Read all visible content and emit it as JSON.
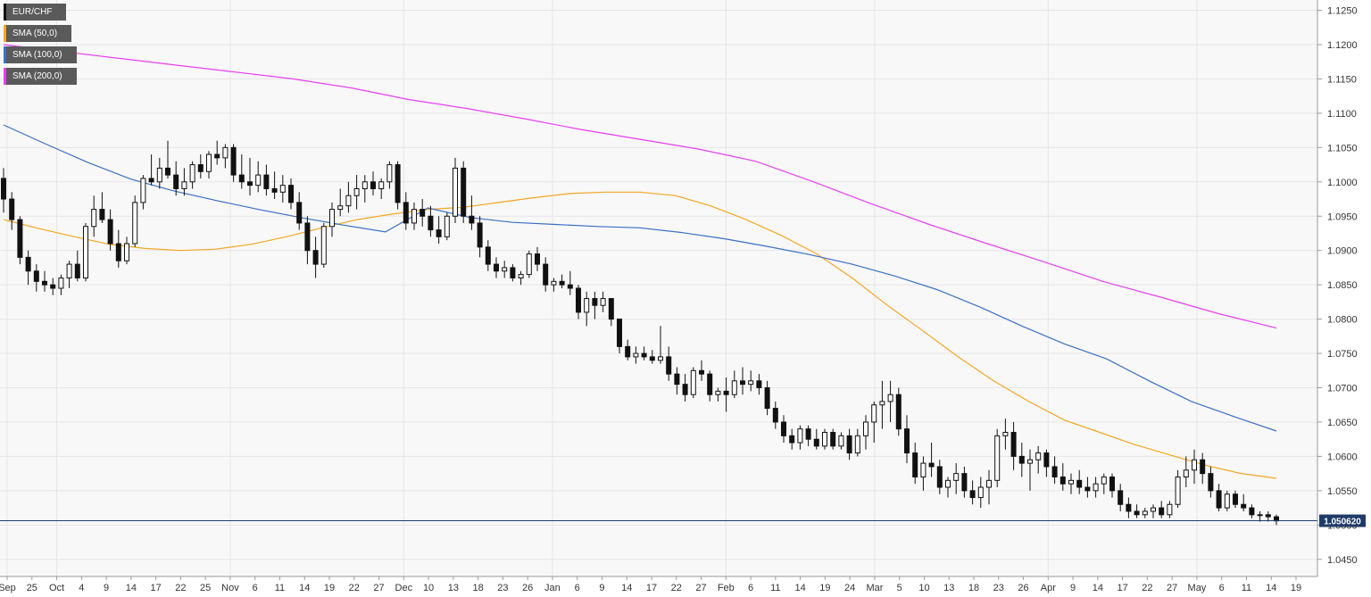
{
  "chart_data": {
    "type": "candlestick",
    "symbol": "EUR/CHF",
    "ylim": [
      1.0425,
      1.1265
    ],
    "y_ticks": [
      "1.1250",
      "1.1200",
      "1.1150",
      "1.1100",
      "1.1050",
      "1.1000",
      "1.0950",
      "1.0900",
      "1.0850",
      "1.0800",
      "1.0750",
      "1.0700",
      "1.0650",
      "1.0600",
      "1.0550",
      "1.0500",
      "1.0450"
    ],
    "x_tick_labels": [
      "Sep",
      "25",
      "Oct",
      "4",
      "9",
      "14",
      "17",
      "22",
      "25",
      "Nov",
      "6",
      "11",
      "14",
      "19",
      "22",
      "27",
      "Dec",
      "10",
      "13",
      "18",
      "23",
      "26",
      "Jan",
      "6",
      "9",
      "14",
      "17",
      "22",
      "27",
      "Feb",
      "6",
      "11",
      "14",
      "19",
      "24",
      "Mar",
      "5",
      "10",
      "13",
      "18",
      "23",
      "26",
      "Apr",
      "9",
      "14",
      "17",
      "22",
      "27",
      "May",
      "6",
      "11",
      "14",
      "19"
    ],
    "current_price": "1.050620",
    "legend": [
      {
        "label": "EUR/CHF",
        "color": "#111111"
      },
      {
        "label": "SMA (50,0)",
        "color": "#f5a623"
      },
      {
        "label": "SMA (100,0)",
        "color": "#3a6fc4"
      },
      {
        "label": "SMA (200,0)",
        "color": "#e83ef0"
      }
    ],
    "series": [
      {
        "name": "SMA (50,0)",
        "color": "#f5a623",
        "values": [
          1.0945,
          1.0932,
          1.092,
          1.0909,
          1.0903,
          1.09,
          1.0902,
          1.0909,
          1.092,
          1.0933,
          1.0945,
          1.0953,
          1.096,
          1.0963,
          1.097,
          1.0977,
          1.0983,
          1.0985,
          1.0985,
          1.098,
          1.0965,
          1.0945,
          1.0922,
          1.0895,
          1.086,
          1.082,
          1.0783,
          1.0745,
          1.071,
          1.068,
          1.0653,
          1.0635,
          1.0617,
          1.0602,
          1.0587,
          1.0575,
          1.0568
        ]
      },
      {
        "name": "SMA (100,0)",
        "color": "#3a6fc4",
        "values": [
          1.1083,
          1.1055,
          1.1028,
          1.1004,
          1.0987,
          1.0973,
          1.096,
          1.0948,
          1.0937,
          1.0927,
          1.0962,
          1.0948,
          1.0941,
          1.0938,
          1.0935,
          1.0933,
          1.0926,
          1.0917,
          1.0906,
          1.0894,
          1.088,
          1.0863,
          1.0843,
          1.0818,
          1.079,
          1.0764,
          1.0742,
          1.071,
          1.068,
          1.0658,
          1.0637
        ]
      },
      {
        "name": "SMA (200,0)",
        "color": "#e83ef0",
        "values": [
          1.12,
          1.119,
          1.118,
          1.117,
          1.116,
          1.115,
          1.1137,
          1.112,
          1.1107,
          1.1092,
          1.1076,
          1.1062,
          1.1048,
          1.103,
          1.1,
          1.0968,
          1.0938,
          1.091,
          1.0883,
          1.0855,
          1.0832,
          1.0808,
          1.0787
        ]
      }
    ],
    "candles": [
      [
        1.1005,
        1.102,
        1.0955,
        1.0975
      ],
      [
        1.0975,
        1.0985,
        1.093,
        1.0945
      ],
      [
        1.0945,
        1.095,
        1.088,
        1.089
      ],
      [
        1.089,
        1.09,
        1.085,
        1.087
      ],
      [
        1.087,
        1.088,
        1.084,
        1.0855
      ],
      [
        1.0855,
        1.087,
        1.084,
        1.085
      ],
      [
        1.085,
        1.086,
        1.0835,
        1.0845
      ],
      [
        1.0845,
        1.0865,
        1.0835,
        1.086
      ],
      [
        1.086,
        1.0885,
        1.0845,
        1.088
      ],
      [
        1.088,
        1.09,
        1.0855,
        1.086
      ],
      [
        1.086,
        1.094,
        1.0855,
        1.0935
      ],
      [
        1.0935,
        1.098,
        1.092,
        1.096
      ],
      [
        1.096,
        1.0985,
        1.094,
        1.0945
      ],
      [
        1.0945,
        1.096,
        1.09,
        1.091
      ],
      [
        1.091,
        1.093,
        1.0875,
        1.0885
      ],
      [
        1.0885,
        1.092,
        1.088,
        1.091
      ],
      [
        1.091,
        1.098,
        1.0905,
        1.097
      ],
      [
        1.097,
        1.101,
        1.096,
        1.1005
      ],
      [
        1.1005,
        1.104,
        1.0995,
        1.1
      ],
      [
        1.1,
        1.1035,
        1.099,
        1.102
      ],
      [
        1.102,
        1.106,
        1.1005,
        1.101
      ],
      [
        1.101,
        1.103,
        1.098,
        1.099
      ],
      [
        1.099,
        1.102,
        1.098,
        1.1
      ],
      [
        1.1,
        1.103,
        1.099,
        1.1025
      ],
      [
        1.1025,
        1.104,
        1.1005,
        1.1015
      ],
      [
        1.1015,
        1.1045,
        1.1005,
        1.104
      ],
      [
        1.104,
        1.106,
        1.1025,
        1.1035
      ],
      [
        1.1035,
        1.1055,
        1.102,
        1.105
      ],
      [
        1.105,
        1.1055,
        1.1,
        1.101
      ],
      [
        1.101,
        1.104,
        1.099,
        1.1
      ],
      [
        1.1,
        1.1035,
        1.098,
        1.0995
      ],
      [
        1.0995,
        1.103,
        1.0985,
        1.101
      ],
      [
        1.101,
        1.1025,
        1.098,
        1.099
      ],
      [
        1.099,
        1.1015,
        1.0975,
        1.0985
      ],
      [
        1.0985,
        1.101,
        1.097,
        1.0995
      ],
      [
        1.0995,
        1.1005,
        1.096,
        1.097
      ],
      [
        1.097,
        1.0985,
        1.093,
        1.094
      ],
      [
        1.094,
        1.095,
        1.088,
        1.09
      ],
      [
        1.09,
        1.092,
        1.086,
        1.088
      ],
      [
        1.088,
        1.094,
        1.0875,
        1.0935
      ],
      [
        1.0935,
        1.097,
        1.092,
        1.096
      ],
      [
        1.096,
        1.099,
        1.095,
        1.0965
      ],
      [
        1.0965,
        1.1,
        1.0955,
        1.098
      ],
      [
        1.098,
        1.101,
        1.096,
        1.099
      ],
      [
        1.099,
        1.101,
        1.097,
        1.1
      ],
      [
        1.1,
        1.1015,
        1.098,
        1.099
      ],
      [
        1.099,
        1.1005,
        1.0975,
        1.1
      ],
      [
        1.1,
        1.103,
        1.099,
        1.1025
      ],
      [
        1.1025,
        1.103,
        1.096,
        1.097
      ],
      [
        1.097,
        1.0985,
        1.093,
        1.094
      ],
      [
        1.094,
        1.097,
        1.093,
        1.096
      ],
      [
        1.096,
        1.0975,
        1.0935,
        1.095
      ],
      [
        1.095,
        1.0965,
        1.092,
        1.093
      ],
      [
        1.093,
        1.095,
        1.091,
        1.092
      ],
      [
        1.092,
        1.0955,
        1.0915,
        1.095
      ],
      [
        1.095,
        1.1035,
        1.094,
        1.102
      ],
      [
        1.102,
        1.103,
        1.094,
        1.095
      ],
      [
        1.095,
        1.098,
        1.093,
        1.094
      ],
      [
        1.094,
        1.095,
        1.089,
        1.0905
      ],
      [
        1.0905,
        1.0915,
        1.087,
        1.088
      ],
      [
        1.088,
        1.089,
        1.086,
        1.087
      ],
      [
        1.087,
        1.0885,
        1.086,
        1.0875
      ],
      [
        1.0875,
        1.088,
        1.0855,
        1.086
      ],
      [
        1.086,
        1.087,
        1.085,
        1.0865
      ],
      [
        1.0865,
        1.09,
        1.086,
        1.0895
      ],
      [
        1.0895,
        1.0905,
        1.087,
        1.088
      ],
      [
        1.088,
        1.089,
        1.084,
        1.085
      ],
      [
        1.085,
        1.086,
        1.084,
        1.0855
      ],
      [
        1.0855,
        1.0865,
        1.0845,
        1.085
      ],
      [
        1.085,
        1.087,
        1.0835,
        1.0845
      ],
      [
        1.0845,
        1.085,
        1.08,
        1.081
      ],
      [
        1.081,
        1.084,
        1.079,
        1.083
      ],
      [
        1.083,
        1.084,
        1.08,
        1.082
      ],
      [
        1.082,
        1.084,
        1.081,
        1.083
      ],
      [
        1.083,
        1.083,
        1.079,
        1.08
      ],
      [
        1.08,
        1.08,
        1.075,
        1.076
      ],
      [
        1.076,
        1.077,
        1.074,
        1.0745
      ],
      [
        1.0745,
        1.076,
        1.0735,
        1.075
      ],
      [
        1.075,
        1.076,
        1.074,
        1.0745
      ],
      [
        1.0745,
        1.0755,
        1.0735,
        1.074
      ],
      [
        1.074,
        1.079,
        1.0735,
        1.0745
      ],
      [
        1.0745,
        1.076,
        1.071,
        1.072
      ],
      [
        1.072,
        1.073,
        1.069,
        1.0705
      ],
      [
        1.0705,
        1.072,
        1.068,
        1.069
      ],
      [
        1.069,
        1.073,
        1.0685,
        1.0725
      ],
      [
        1.0725,
        1.074,
        1.071,
        1.072
      ],
      [
        1.072,
        1.0725,
        1.068,
        1.069
      ],
      [
        1.069,
        1.07,
        1.068,
        1.0695
      ],
      [
        1.0695,
        1.0715,
        1.0665,
        1.069
      ],
      [
        1.069,
        1.0725,
        1.0685,
        1.071
      ],
      [
        1.071,
        1.073,
        1.069,
        1.0705
      ],
      [
        1.0705,
        1.0725,
        1.0695,
        1.071
      ],
      [
        1.071,
        1.072,
        1.069,
        1.07
      ],
      [
        1.07,
        1.071,
        1.066,
        1.067
      ],
      [
        1.067,
        1.068,
        1.064,
        1.065
      ],
      [
        1.065,
        1.066,
        1.062,
        1.063
      ],
      [
        1.063,
        1.064,
        1.061,
        1.062
      ],
      [
        1.062,
        1.0645,
        1.061,
        1.064
      ],
      [
        1.064,
        1.0645,
        1.0615,
        1.0625
      ],
      [
        1.0625,
        1.064,
        1.061,
        1.0615
      ],
      [
        1.0615,
        1.064,
        1.061,
        1.0635
      ],
      [
        1.0635,
        1.064,
        1.061,
        1.0615
      ],
      [
        1.0615,
        1.0635,
        1.061,
        1.063
      ],
      [
        1.063,
        1.064,
        1.0595,
        1.0605
      ],
      [
        1.0605,
        1.064,
        1.06,
        1.063
      ],
      [
        1.063,
        1.066,
        1.061,
        1.065
      ],
      [
        1.065,
        1.068,
        1.062,
        1.0675
      ],
      [
        1.0675,
        1.071,
        1.064,
        1.068
      ],
      [
        1.068,
        1.071,
        1.065,
        1.069
      ],
      [
        1.069,
        1.07,
        1.063,
        1.064
      ],
      [
        1.064,
        1.066,
        1.059,
        1.0605
      ],
      [
        1.0605,
        1.062,
        1.056,
        1.057
      ],
      [
        1.057,
        1.06,
        1.055,
        1.059
      ],
      [
        1.059,
        1.062,
        1.057,
        1.0585
      ],
      [
        1.0585,
        1.0595,
        1.0545,
        1.0555
      ],
      [
        1.0555,
        1.057,
        1.054,
        1.0565
      ],
      [
        1.0565,
        1.059,
        1.0545,
        1.0575
      ],
      [
        1.0575,
        1.0585,
        1.054,
        1.055
      ],
      [
        1.055,
        1.0565,
        1.053,
        1.054
      ],
      [
        1.054,
        1.057,
        1.0525,
        1.0555
      ],
      [
        1.0555,
        1.058,
        1.053,
        1.0565
      ],
      [
        1.0565,
        1.064,
        1.0555,
        1.063
      ],
      [
        1.063,
        1.0655,
        1.061,
        1.0635
      ],
      [
        1.0635,
        1.065,
        1.058,
        1.06
      ],
      [
        1.06,
        1.062,
        1.057,
        1.059
      ],
      [
        1.059,
        1.061,
        1.055,
        1.0595
      ],
      [
        1.0595,
        1.0615,
        1.0575,
        1.0605
      ],
      [
        1.0605,
        1.061,
        1.057,
        1.0585
      ],
      [
        1.0585,
        1.06,
        1.056,
        1.057
      ],
      [
        1.057,
        1.059,
        1.055,
        1.056
      ],
      [
        1.056,
        1.0575,
        1.0545,
        1.0565
      ],
      [
        1.0565,
        1.058,
        1.0545,
        1.0555
      ],
      [
        1.0555,
        1.057,
        1.054,
        1.055
      ],
      [
        1.055,
        1.057,
        1.054,
        1.056
      ],
      [
        1.056,
        1.0575,
        1.0545,
        1.057
      ],
      [
        1.057,
        1.0575,
        1.054,
        1.055
      ],
      [
        1.055,
        1.056,
        1.052,
        1.053
      ],
      [
        1.053,
        1.054,
        1.051,
        1.052
      ],
      [
        1.052,
        1.053,
        1.051,
        1.0515
      ],
      [
        1.0515,
        1.0525,
        1.051,
        1.052
      ],
      [
        1.052,
        1.053,
        1.051,
        1.0525
      ],
      [
        1.0525,
        1.0535,
        1.051,
        1.0515
      ],
      [
        1.0515,
        1.0535,
        1.051,
        1.053
      ],
      [
        1.053,
        1.058,
        1.0525,
        1.057
      ],
      [
        1.057,
        1.06,
        1.0555,
        1.058
      ],
      [
        1.058,
        1.061,
        1.056,
        1.0595
      ],
      [
        1.0595,
        1.0605,
        1.056,
        1.0575
      ],
      [
        1.0575,
        1.0585,
        1.054,
        1.055
      ],
      [
        1.055,
        1.056,
        1.052,
        1.0525
      ],
      [
        1.0525,
        1.055,
        1.052,
        1.0545
      ],
      [
        1.0545,
        1.055,
        1.0525,
        1.053
      ],
      [
        1.053,
        1.0545,
        1.052,
        1.0525
      ],
      [
        1.0525,
        1.053,
        1.051,
        1.0515
      ],
      [
        1.0515,
        1.052,
        1.0505,
        1.0515
      ],
      [
        1.0515,
        1.052,
        1.0505,
        1.0512
      ],
      [
        1.0512,
        1.0515,
        1.05,
        1.0506
      ]
    ]
  }
}
